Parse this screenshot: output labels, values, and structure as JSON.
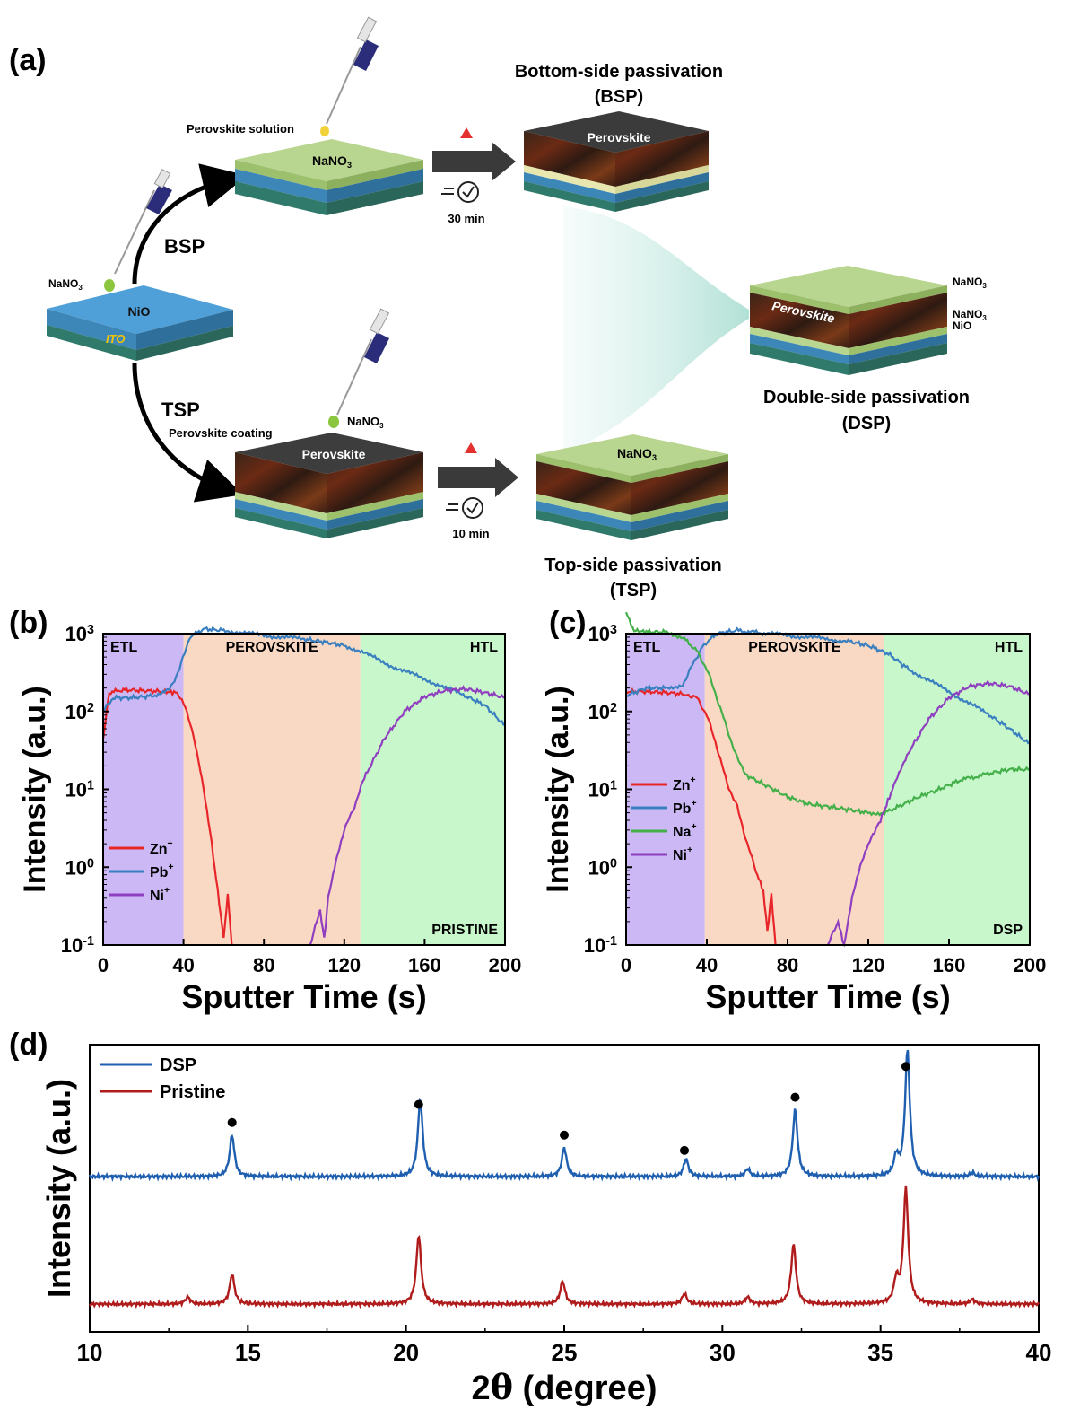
{
  "panels": {
    "a": {
      "label": "(a)",
      "bsp_title_line1": "Bottom-side passivation",
      "bsp_title_line2": "(BSP)",
      "tsp_title_line1": "Top-side passivation",
      "tsp_title_line2": "(TSP)",
      "dsp_title_line1": "Double-side passivation",
      "dsp_title_line2": "(DSP)",
      "perovskite_solution": "Perovskite solution",
      "perovskite_coating": "Perovskite coating",
      "nano3_drop_label": "NaNO",
      "nano3_drop_sub": "3",
      "nano3_drop_label_tsp": "NaNO",
      "nano3_drop_sub_tsp": "3",
      "bsp_arrow_label": "BSP",
      "tsp_arrow_label": "TSP",
      "time_bsp": "30 min",
      "time_tsp": "10 min",
      "nio_label": "NiO",
      "ito_label": "ITO",
      "bsp_top_layer": "NaNO",
      "bsp_top_layer_sub": "3",
      "bsp_result_layer": "Perovskite",
      "tsp_first_layer": "Perovskite",
      "tsp_result_layer": "NaNO",
      "tsp_result_layer_sub": "3",
      "dsp_layer": "Perovskite",
      "dsp_label_top": "NaNO",
      "dsp_label_top_sub": "3",
      "dsp_label_mid": "NaNO",
      "dsp_label_mid_sub": "3",
      "dsp_label_bottom": "NiO"
    },
    "b": {
      "label": "(b)",
      "corner_tag": "PRISTINE"
    },
    "c": {
      "label": "(c)",
      "corner_tag": "DSP"
    },
    "d": {
      "label": "(d)"
    }
  },
  "chart_data": [
    {
      "id": "b",
      "type": "line",
      "xlabel": "Sputter Time (s)",
      "ylabel": "Intensity (a.u.)",
      "xlim": [
        0,
        200
      ],
      "ylim": [
        0.1,
        1000
      ],
      "yscale": "log",
      "xticks": [
        0,
        40,
        80,
        120,
        160,
        200
      ],
      "yticks": [
        {
          "base": "10",
          "exp": "-1"
        },
        {
          "base": "10",
          "exp": "0"
        },
        {
          "base": "10",
          "exp": "1"
        },
        {
          "base": "10",
          "exp": "2"
        },
        {
          "base": "10",
          "exp": "3"
        }
      ],
      "regions": [
        {
          "label": "ETL",
          "from": 0,
          "to": 40,
          "color": "#cbb8f5"
        },
        {
          "label": "PEROVSKITE",
          "from": 40,
          "to": 128,
          "color": "#fad9c4"
        },
        {
          "label": "HTL",
          "from": 128,
          "to": 200,
          "color": "#c9f7cc"
        }
      ],
      "legend_position": "bottom-left",
      "series": [
        {
          "name": "Zn",
          "sup": "+",
          "color": "#e8262a",
          "points": [
            [
              0,
              45
            ],
            [
              3,
              175
            ],
            [
              10,
              190
            ],
            [
              20,
              185
            ],
            [
              30,
              180
            ],
            [
              36,
              175
            ],
            [
              40,
              130
            ],
            [
              45,
              50
            ],
            [
              50,
              10
            ],
            [
              54,
              2
            ],
            [
              57,
              0.5
            ],
            [
              60,
              0.12
            ],
            [
              62,
              0.45
            ],
            [
              64,
              0.1
            ]
          ]
        },
        {
          "name": "Pb",
          "sup": "+",
          "color": "#3a7fbf",
          "points": [
            [
              0,
              100
            ],
            [
              5,
              150
            ],
            [
              15,
              150
            ],
            [
              25,
              160
            ],
            [
              33,
              190
            ],
            [
              38,
              350
            ],
            [
              43,
              900
            ],
            [
              50,
              1150
            ],
            [
              60,
              1100
            ],
            [
              80,
              950
            ],
            [
              100,
              850
            ],
            [
              110,
              780
            ],
            [
              120,
              700
            ],
            [
              128,
              600
            ],
            [
              140,
              420
            ],
            [
              160,
              260
            ],
            [
              180,
              160
            ],
            [
              190,
              120
            ],
            [
              200,
              65
            ]
          ]
        },
        {
          "name": "Ni",
          "sup": "+",
          "color": "#8f3fbf",
          "points": [
            [
              103,
              0.1
            ],
            [
              108,
              0.28
            ],
            [
              110,
              0.12
            ],
            [
              112,
              0.4
            ],
            [
              116,
              1.2
            ],
            [
              120,
              3
            ],
            [
              125,
              6
            ],
            [
              130,
              14
            ],
            [
              140,
              45
            ],
            [
              150,
              100
            ],
            [
              160,
              155
            ],
            [
              170,
              185
            ],
            [
              180,
              195
            ],
            [
              190,
              175
            ],
            [
              200,
              150
            ]
          ]
        }
      ]
    },
    {
      "id": "c",
      "type": "line",
      "xlabel": "Sputter Time (s)",
      "ylabel": "Intensity (a.u.)",
      "xlim": [
        0,
        200
      ],
      "ylim": [
        0.1,
        1000
      ],
      "yscale": "log",
      "xticks": [
        0,
        40,
        80,
        120,
        160,
        200
      ],
      "yticks": [
        {
          "base": "10",
          "exp": "-1"
        },
        {
          "base": "10",
          "exp": "0"
        },
        {
          "base": "10",
          "exp": "1"
        },
        {
          "base": "10",
          "exp": "2"
        },
        {
          "base": "10",
          "exp": "3"
        }
      ],
      "regions": [
        {
          "label": "ETL",
          "from": 0,
          "to": 39,
          "color": "#cbb8f5"
        },
        {
          "label": "PEROVSKITE",
          "from": 39,
          "to": 128,
          "color": "#fad9c4"
        },
        {
          "label": "HTL",
          "from": 128,
          "to": 200,
          "color": "#c9f7cc"
        }
      ],
      "legend_position": "bottom-left",
      "series": [
        {
          "name": "Zn",
          "sup": "+",
          "color": "#e8262a",
          "points": [
            [
              0,
              180
            ],
            [
              10,
              180
            ],
            [
              20,
              175
            ],
            [
              30,
              165
            ],
            [
              35,
              150
            ],
            [
              40,
              90
            ],
            [
              45,
              35
            ],
            [
              50,
              12
            ],
            [
              55,
              6
            ],
            [
              60,
              2
            ],
            [
              65,
              0.8
            ],
            [
              68,
              0.5
            ],
            [
              70,
              0.15
            ],
            [
              72,
              0.45
            ],
            [
              74,
              0.1
            ]
          ]
        },
        {
          "name": "Pb",
          "sup": "+",
          "color": "#3a7fbf",
          "points": [
            [
              0,
              160
            ],
            [
              10,
              200
            ],
            [
              20,
              200
            ],
            [
              28,
              220
            ],
            [
              33,
              400
            ],
            [
              38,
              700
            ],
            [
              45,
              1000
            ],
            [
              55,
              1100
            ],
            [
              70,
              1000
            ],
            [
              90,
              900
            ],
            [
              110,
              800
            ],
            [
              120,
              700
            ],
            [
              130,
              550
            ],
            [
              140,
              350
            ],
            [
              160,
              180
            ],
            [
              180,
              90
            ],
            [
              190,
              60
            ],
            [
              200,
              38
            ]
          ]
        },
        {
          "name": "Na",
          "sup": "+",
          "color": "#44b04a",
          "points": [
            [
              0,
              1900
            ],
            [
              4,
              1100
            ],
            [
              10,
              1050
            ],
            [
              20,
              1050
            ],
            [
              28,
              900
            ],
            [
              35,
              600
            ],
            [
              40,
              350
            ],
            [
              45,
              150
            ],
            [
              50,
              60
            ],
            [
              55,
              25
            ],
            [
              60,
              15
            ],
            [
              70,
              11
            ],
            [
              80,
              8
            ],
            [
              90,
              6.5
            ],
            [
              100,
              6
            ],
            [
              110,
              5.5
            ],
            [
              120,
              5
            ],
            [
              128,
              5
            ],
            [
              135,
              6
            ],
            [
              145,
              8
            ],
            [
              155,
              10
            ],
            [
              165,
              13
            ],
            [
              180,
              16
            ],
            [
              190,
              18
            ],
            [
              200,
              18
            ]
          ]
        },
        {
          "name": "Ni",
          "sup": "+",
          "color": "#8f3fbf",
          "points": [
            [
              100,
              0.1
            ],
            [
              105,
              0.2
            ],
            [
              108,
              0.1
            ],
            [
              112,
              0.4
            ],
            [
              116,
              1
            ],
            [
              120,
              2
            ],
            [
              126,
              4
            ],
            [
              132,
              10
            ],
            [
              140,
              30
            ],
            [
              150,
              80
            ],
            [
              160,
              150
            ],
            [
              170,
              210
            ],
            [
              180,
              230
            ],
            [
              190,
              210
            ],
            [
              200,
              165
            ]
          ]
        }
      ]
    },
    {
      "id": "d",
      "type": "line",
      "xlabel_prefix": "2",
      "xlabel_theta": "θ",
      "xlabel_suffix": " (degree)",
      "ylabel": "Intensity (a.u.)",
      "xlim": [
        10,
        40
      ],
      "xticks": [
        10,
        15,
        20,
        25,
        30,
        35,
        40
      ],
      "legend_position": "top-left",
      "peak_markers": [
        14.5,
        20.4,
        25.0,
        28.8,
        32.3,
        35.8
      ],
      "series": [
        {
          "name": "DSP",
          "color": "#1f5fb0",
          "peaks": [
            [
              14.5,
              0.33
            ],
            [
              20.45,
              0.62
            ],
            [
              25.0,
              0.23
            ],
            [
              28.85,
              0.14
            ],
            [
              30.8,
              0.06
            ],
            [
              32.3,
              0.53
            ],
            [
              35.5,
              0.15
            ],
            [
              35.85,
              1.0
            ],
            [
              37.9,
              0.03
            ]
          ]
        },
        {
          "name": "Pristine",
          "color": "#b01c1c",
          "peaks": [
            [
              13.1,
              0.06
            ],
            [
              14.5,
              0.26
            ],
            [
              20.4,
              0.6
            ],
            [
              24.95,
              0.2
            ],
            [
              28.8,
              0.09
            ],
            [
              30.8,
              0.06
            ],
            [
              32.25,
              0.52
            ],
            [
              35.5,
              0.2
            ],
            [
              35.8,
              1.0
            ],
            [
              37.9,
              0.04
            ]
          ]
        }
      ]
    }
  ]
}
